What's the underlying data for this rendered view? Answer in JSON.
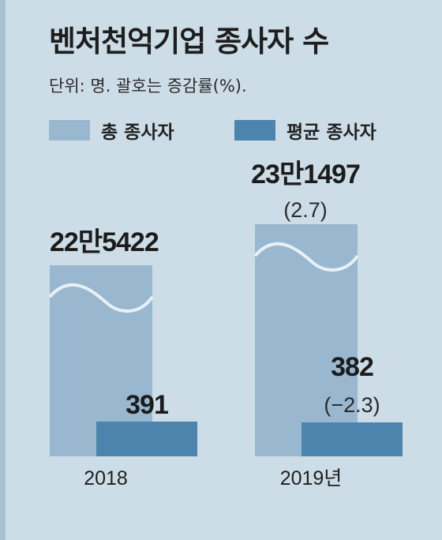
{
  "title": "벤처천억기업 종사자 수",
  "unit_note": "단위: 명. 괄호는 증감률(%).",
  "colors": {
    "total": "#99b8cf",
    "average": "#4d84ad",
    "wave": "#e8f0f5"
  },
  "chart_data": {
    "type": "bar",
    "categories": [
      "2018",
      "2019년"
    ],
    "series": [
      {
        "name": "총 종사자",
        "values": [
          225422,
          231497
        ],
        "labels": [
          "22만5422",
          "23만1497"
        ],
        "change_labels": [
          "",
          "(2.7)"
        ]
      },
      {
        "name": "평균 종사자",
        "values": [
          391,
          382
        ],
        "labels": [
          "391",
          "382"
        ],
        "change_labels": [
          "",
          "(−2.3)"
        ]
      }
    ],
    "axis_break": true,
    "legend_position": "top-left"
  }
}
